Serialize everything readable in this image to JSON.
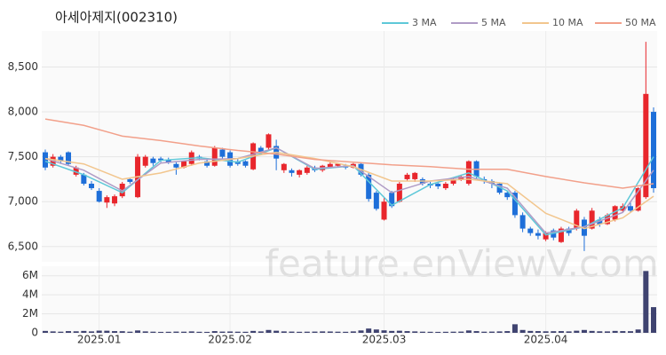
{
  "chart_data": {
    "type": "candlestick",
    "title": "아세아제지(002310)",
    "watermark": "feature.enViewV.com",
    "categories": [
      null,
      null,
      null,
      null,
      null,
      null,
      null,
      "2025.01",
      null,
      null,
      null,
      null,
      null,
      null,
      null,
      null,
      null,
      null,
      null,
      null,
      null,
      null,
      null,
      null,
      "2025.02",
      null,
      null,
      null,
      null,
      null,
      null,
      null,
      null,
      null,
      null,
      null,
      null,
      null,
      null,
      null,
      null,
      null,
      null,
      null,
      "2025.03",
      null,
      null,
      null,
      null,
      null,
      null,
      null,
      null,
      null,
      null,
      null,
      null,
      null,
      null,
      null,
      null,
      null,
      null,
      null,
      null,
      "2025.04",
      null,
      null,
      null,
      null,
      null,
      null,
      null,
      null,
      null,
      null,
      null,
      null,
      null,
      null
    ],
    "open": [
      7550,
      7400,
      7500,
      7550,
      7300,
      7300,
      7200,
      7120,
      6990,
      6980,
      7060,
      7250,
      7050,
      7400,
      7480,
      7480,
      7470,
      7420,
      7380,
      7420,
      7500,
      7450,
      7400,
      7580,
      7550,
      7450,
      7450,
      7360,
      7600,
      7600,
      7620,
      7350,
      7350,
      7300,
      7320,
      7380,
      7350,
      7380,
      7400,
      7400,
      7380,
      7420,
      7300,
      7100,
      6800,
      7100,
      7000,
      7250,
      7250,
      7250,
      7200,
      7200,
      7150,
      7200,
      7250,
      7200,
      7450,
      7250,
      7230,
      7200,
      7100,
      7100,
      6850,
      6700,
      6650,
      6580,
      6680,
      6550,
      6700,
      6700,
      6800,
      6700,
      6800,
      6750,
      6800,
      6900,
      6950,
      6900,
      7050,
      8000
    ],
    "high": [
      7580,
      7530,
      7520,
      7560,
      7400,
      7320,
      7230,
      7150,
      7070,
      7080,
      7220,
      7260,
      7530,
      7520,
      7500,
      7500,
      7490,
      7440,
      7460,
      7570,
      7520,
      7470,
      7620,
      7600,
      7570,
      7480,
      7460,
      7660,
      7620,
      7760,
      7690,
      7430,
      7370,
      7360,
      7400,
      7400,
      7410,
      7440,
      7430,
      7420,
      7430,
      7440,
      7320,
      7120,
      7050,
      7120,
      7220,
      7320,
      7330,
      7270,
      7220,
      7220,
      7220,
      7260,
      7300,
      7460,
      7460,
      7280,
      7250,
      7210,
      7120,
      7120,
      6880,
      6720,
      6690,
      6670,
      6700,
      6720,
      6720,
      6920,
      6830,
      6930,
      6830,
      6870,
      6960,
      6980,
      6990,
      7160,
      8780,
      8050
    ],
    "low": [
      7350,
      7380,
      7420,
      7400,
      7280,
      7180,
      7130,
      6990,
      6930,
      6950,
      7040,
      7200,
      7040,
      7380,
      7400,
      7440,
      7420,
      7300,
      7370,
      7400,
      7460,
      7380,
      7390,
      7480,
      7380,
      7400,
      7380,
      7350,
      7520,
      7580,
      7350,
      7320,
      7280,
      7270,
      7300,
      7330,
      7330,
      7370,
      7380,
      7360,
      7370,
      7280,
      7000,
      6900,
      6790,
      6930,
      6990,
      7230,
      7220,
      7180,
      7150,
      7140,
      7130,
      7180,
      7230,
      7180,
      7250,
      7200,
      7150,
      7080,
      7020,
      6820,
      6660,
      6620,
      6580,
      6560,
      6570,
      6540,
      6620,
      6680,
      6450,
      6690,
      6720,
      6740,
      6780,
      6880,
      6880,
      6890,
      7030,
      7100
    ],
    "close": [
      7380,
      7500,
      7450,
      7420,
      7380,
      7200,
      7150,
      7000,
      7050,
      7060,
      7200,
      7220,
      7500,
      7500,
      7430,
      7460,
      7440,
      7380,
      7450,
      7550,
      7480,
      7400,
      7600,
      7500,
      7400,
      7420,
      7400,
      7650,
      7550,
      7750,
      7480,
      7420,
      7320,
      7350,
      7380,
      7350,
      7400,
      7420,
      7420,
      7380,
      7420,
      7300,
      7030,
      6920,
      7000,
      6950,
      7200,
      7300,
      7320,
      7200,
      7180,
      7170,
      7200,
      7250,
      7280,
      7450,
      7280,
      7230,
      7200,
      7100,
      7050,
      6850,
      6700,
      6650,
      6620,
      6650,
      6600,
      6700,
      6650,
      6900,
      6620,
      6900,
      6750,
      6850,
      6950,
      6950,
      6900,
      7150,
      8200,
      7150
    ],
    "volume": [
      200000,
      150000,
      120000,
      180000,
      160000,
      200000,
      150000,
      230000,
      220000,
      180000,
      170000,
      120000,
      250000,
      150000,
      120000,
      100000,
      110000,
      130000,
      120000,
      150000,
      110000,
      100000,
      180000,
      130000,
      140000,
      120000,
      110000,
      200000,
      150000,
      300000,
      220000,
      150000,
      130000,
      110000,
      120000,
      130000,
      150000,
      140000,
      120000,
      110000,
      150000,
      250000,
      450000,
      350000,
      260000,
      200000,
      220000,
      180000,
      150000,
      120000,
      110000,
      100000,
      110000,
      120000,
      130000,
      250000,
      180000,
      120000,
      130000,
      150000,
      180000,
      900000,
      300000,
      200000,
      180000,
      160000,
      170000,
      180000,
      150000,
      220000,
      300000,
      200000,
      160000,
      150000,
      200000,
      180000,
      170000,
      350000,
      6500000,
      2700000
    ],
    "up_color": "#e8262c",
    "down_color": "#1e6fd9",
    "volume_color": "#3f4370",
    "ylim": [
      6330,
      8900
    ],
    "yticks": [
      {
        "value": 6500,
        "label": "6,500"
      },
      {
        "value": 7000,
        "label": "7,000"
      },
      {
        "value": 7500,
        "label": "7,500"
      },
      {
        "value": 8000,
        "label": "8,000"
      },
      {
        "value": 8500,
        "label": "8,500"
      }
    ],
    "volume_ylim": [
      0,
      7000000
    ],
    "volume_yticks": [
      0,
      {
        "value": 2000000,
        "label": "2M"
      },
      {
        "value": 4000000,
        "label": "4M"
      },
      {
        "value": 6000000,
        "label": "6M"
      }
    ],
    "grid": true,
    "ma": [
      {
        "name": "3 MA",
        "color": "#5ec8d8",
        "x": [
          0,
          5,
          10,
          15,
          20,
          25,
          30,
          35,
          40,
          45,
          50,
          55,
          60,
          65,
          70,
          75,
          79
        ],
        "values": [
          7450,
          7300,
          7100,
          7460,
          7490,
          7440,
          7600,
          7360,
          7400,
          6960,
          7190,
          7320,
          7120,
          6630,
          6720,
          6930,
          7500
        ]
      },
      {
        "name": "5 MA",
        "color": "#b09cc6",
        "x": [
          0,
          5,
          10,
          15,
          20,
          25,
          30,
          35,
          40,
          45,
          50,
          55,
          60,
          65,
          70,
          75,
          79
        ],
        "values": [
          7480,
          7350,
          7120,
          7430,
          7470,
          7480,
          7600,
          7370,
          7400,
          7100,
          7230,
          7280,
          7150,
          6650,
          6720,
          6880,
          7350
        ]
      },
      {
        "name": "10 MA",
        "color": "#f2c68e",
        "x": [
          0,
          5,
          10,
          15,
          20,
          25,
          30,
          35,
          40,
          45,
          50,
          55,
          60,
          65,
          70,
          75,
          79
        ],
        "values": [
          7480,
          7420,
          7250,
          7320,
          7430,
          7480,
          7550,
          7480,
          7390,
          7230,
          7230,
          7250,
          7200,
          6870,
          6700,
          6820,
          7060
        ]
      },
      {
        "name": "50 MA",
        "color": "#f2a08a",
        "x": [
          0,
          5,
          10,
          15,
          20,
          25,
          30,
          35,
          40,
          45,
          50,
          55,
          60,
          65,
          70,
          75,
          79
        ],
        "values": [
          7920,
          7850,
          7730,
          7680,
          7620,
          7570,
          7530,
          7470,
          7440,
          7410,
          7390,
          7360,
          7360,
          7280,
          7210,
          7150,
          7200
        ]
      }
    ]
  }
}
